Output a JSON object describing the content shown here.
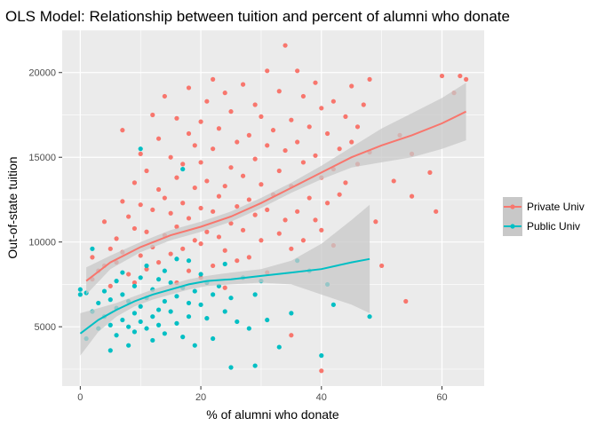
{
  "chart_data": {
    "type": "scatter",
    "title": "OLS Model: Relationship between tuition and percent of alumni who donate",
    "xlabel": "% of alumni who donate",
    "ylabel": "Out-of-state tuition",
    "xlim": [
      -3,
      67
    ],
    "ylim": [
      1500,
      22500
    ],
    "x_ticks": [
      0,
      20,
      40,
      60
    ],
    "y_ticks": [
      5000,
      10000,
      15000,
      20000
    ],
    "x_tick_labels": [
      "0",
      "20",
      "40",
      "60"
    ],
    "y_tick_labels": [
      "5000",
      "10000",
      "15000",
      "20000"
    ],
    "grid": true,
    "legend_position": "right",
    "series": [
      {
        "name": "Private Univ",
        "color": "#F8766D",
        "points": [
          [
            2,
            7800
          ],
          [
            2,
            9100
          ],
          [
            3,
            8300
          ],
          [
            4,
            8600
          ],
          [
            4,
            11200
          ],
          [
            5,
            7400
          ],
          [
            5,
            9600
          ],
          [
            6,
            8800
          ],
          [
            6,
            10200
          ],
          [
            7,
            9400
          ],
          [
            7,
            12400
          ],
          [
            7,
            16600
          ],
          [
            8,
            8100
          ],
          [
            8,
            11500
          ],
          [
            9,
            7600
          ],
          [
            9,
            10800
          ],
          [
            9,
            13500
          ],
          [
            10,
            9200
          ],
          [
            10,
            12200
          ],
          [
            10,
            15200
          ],
          [
            11,
            8400
          ],
          [
            11,
            10600
          ],
          [
            11,
            14200
          ],
          [
            12,
            9700
          ],
          [
            12,
            11900
          ],
          [
            12,
            17500
          ],
          [
            13,
            8800
          ],
          [
            13,
            13100
          ],
          [
            13,
            16100
          ],
          [
            14,
            10400
          ],
          [
            14,
            12600
          ],
          [
            14,
            18600
          ],
          [
            15,
            9300
          ],
          [
            15,
            11700
          ],
          [
            15,
            15000
          ],
          [
            16,
            7600
          ],
          [
            16,
            10900
          ],
          [
            16,
            13800
          ],
          [
            16,
            17300
          ],
          [
            17,
            9600
          ],
          [
            17,
            12300
          ],
          [
            17,
            14600
          ],
          [
            18,
            8300
          ],
          [
            18,
            11400
          ],
          [
            18,
            16400
          ],
          [
            18,
            19100
          ],
          [
            19,
            10100
          ],
          [
            19,
            13200
          ],
          [
            19,
            15700
          ],
          [
            20,
            7900
          ],
          [
            20,
            9900
          ],
          [
            20,
            12000
          ],
          [
            20,
            14700
          ],
          [
            20,
            17100
          ],
          [
            21,
            10600
          ],
          [
            21,
            13600
          ],
          [
            21,
            18300
          ],
          [
            22,
            8600
          ],
          [
            22,
            11800
          ],
          [
            22,
            15500
          ],
          [
            22,
            19600
          ],
          [
            23,
            10300
          ],
          [
            23,
            12700
          ],
          [
            23,
            16700
          ],
          [
            24,
            7300
          ],
          [
            24,
            9500
          ],
          [
            24,
            13300
          ],
          [
            24,
            18800
          ],
          [
            25,
            11100
          ],
          [
            25,
            14400
          ],
          [
            25,
            17700
          ],
          [
            26,
            8900
          ],
          [
            26,
            12100
          ],
          [
            26,
            15900
          ],
          [
            27,
            10700
          ],
          [
            27,
            13900
          ],
          [
            27,
            19300
          ],
          [
            28,
            9100
          ],
          [
            28,
            12500
          ],
          [
            28,
            16300
          ],
          [
            29,
            11600
          ],
          [
            29,
            14900
          ],
          [
            29,
            18100
          ],
          [
            30,
            10100
          ],
          [
            30,
            13400
          ],
          [
            30,
            17400
          ],
          [
            31,
            8200
          ],
          [
            31,
            11900
          ],
          [
            31,
            15700
          ],
          [
            31,
            20100
          ],
          [
            32,
            12800
          ],
          [
            32,
            16600
          ],
          [
            33,
            10500
          ],
          [
            33,
            14200
          ],
          [
            33,
            18900
          ],
          [
            34,
            11300
          ],
          [
            34,
            15400
          ],
          [
            34,
            21600
          ],
          [
            35,
            9600
          ],
          [
            35,
            13300
          ],
          [
            35,
            17200
          ],
          [
            35,
            4500
          ],
          [
            36,
            11800
          ],
          [
            36,
            15900
          ],
          [
            36,
            20100
          ],
          [
            37,
            10100
          ],
          [
            37,
            14700
          ],
          [
            37,
            18600
          ],
          [
            38,
            12600
          ],
          [
            38,
            16800
          ],
          [
            39,
            11300
          ],
          [
            39,
            15100
          ],
          [
            39,
            19400
          ],
          [
            40,
            10700
          ],
          [
            40,
            13800
          ],
          [
            40,
            17900
          ],
          [
            40,
            2400
          ],
          [
            41,
            12300
          ],
          [
            41,
            16400
          ],
          [
            42,
            14300
          ],
          [
            42,
            18300
          ],
          [
            42,
            9800
          ],
          [
            43,
            12800
          ],
          [
            43,
            15500
          ],
          [
            44,
            17400
          ],
          [
            44,
            13500
          ],
          [
            45,
            15900
          ],
          [
            45,
            19200
          ],
          [
            46,
            16800
          ],
          [
            46,
            14600
          ],
          [
            47,
            18100
          ],
          [
            48,
            19600
          ],
          [
            48,
            15300
          ],
          [
            49,
            11200
          ],
          [
            50,
            8600
          ],
          [
            52,
            13600
          ],
          [
            53,
            16300
          ],
          [
            54,
            6500
          ],
          [
            55,
            12700
          ],
          [
            55,
            15200
          ],
          [
            58,
            14100
          ],
          [
            59,
            11800
          ],
          [
            60,
            19800
          ],
          [
            63,
            19800
          ],
          [
            64,
            19600
          ],
          [
            62,
            18800
          ]
        ],
        "fit": [
          [
            1,
            7700
          ],
          [
            5,
            8800
          ],
          [
            10,
            9700
          ],
          [
            15,
            10400
          ],
          [
            20,
            10900
          ],
          [
            25,
            11500
          ],
          [
            30,
            12300
          ],
          [
            35,
            13200
          ],
          [
            40,
            14100
          ],
          [
            45,
            15000
          ],
          [
            50,
            15700
          ],
          [
            55,
            16300
          ],
          [
            60,
            17000
          ],
          [
            64,
            17700
          ]
        ],
        "band_upper": [
          [
            1,
            8500
          ],
          [
            5,
            9200
          ],
          [
            10,
            10000
          ],
          [
            15,
            10700
          ],
          [
            20,
            11200
          ],
          [
            25,
            11800
          ],
          [
            30,
            12600
          ],
          [
            35,
            13500
          ],
          [
            40,
            14500
          ],
          [
            45,
            15600
          ],
          [
            50,
            16700
          ],
          [
            55,
            17600
          ],
          [
            60,
            18500
          ],
          [
            64,
            19400
          ]
        ],
        "band_lower": [
          [
            1,
            6900
          ],
          [
            5,
            8400
          ],
          [
            10,
            9400
          ],
          [
            15,
            10100
          ],
          [
            20,
            10600
          ],
          [
            25,
            11200
          ],
          [
            30,
            12000
          ],
          [
            35,
            12900
          ],
          [
            40,
            13700
          ],
          [
            45,
            14400
          ],
          [
            50,
            14700
          ],
          [
            55,
            15000
          ],
          [
            60,
            15500
          ],
          [
            64,
            16000
          ]
        ]
      },
      {
        "name": "Public Univ",
        "color": "#00BFC4",
        "points": [
          [
            0,
            7200
          ],
          [
            0,
            6900
          ],
          [
            1,
            7000
          ],
          [
            1,
            4300
          ],
          [
            2,
            5900
          ],
          [
            2,
            9600
          ],
          [
            3,
            6400
          ],
          [
            3,
            4900
          ],
          [
            4,
            7100
          ],
          [
            4,
            5600
          ],
          [
            5,
            5100
          ],
          [
            5,
            6600
          ],
          [
            5,
            3600
          ],
          [
            6,
            6100
          ],
          [
            6,
            7700
          ],
          [
            6,
            4500
          ],
          [
            7,
            5400
          ],
          [
            7,
            6900
          ],
          [
            7,
            8200
          ],
          [
            8,
            5000
          ],
          [
            8,
            6500
          ],
          [
            8,
            3900
          ],
          [
            9,
            5800
          ],
          [
            9,
            7400
          ],
          [
            9,
            4700
          ],
          [
            10,
            6200
          ],
          [
            10,
            15500
          ],
          [
            10,
            5300
          ],
          [
            10,
            7900
          ],
          [
            11,
            4900
          ],
          [
            11,
            6700
          ],
          [
            11,
            8600
          ],
          [
            12,
            5600
          ],
          [
            12,
            7200
          ],
          [
            12,
            4200
          ],
          [
            13,
            6000
          ],
          [
            13,
            7800
          ],
          [
            13,
            5100
          ],
          [
            14,
            6500
          ],
          [
            14,
            8300
          ],
          [
            14,
            4600
          ],
          [
            15,
            5900
          ],
          [
            15,
            7600
          ],
          [
            16,
            6800
          ],
          [
            16,
            9000
          ],
          [
            16,
            5200
          ],
          [
            17,
            14300
          ],
          [
            17,
            7300
          ],
          [
            17,
            4400
          ],
          [
            18,
            6400
          ],
          [
            18,
            8900
          ],
          [
            18,
            5600
          ],
          [
            19,
            7100
          ],
          [
            19,
            3900
          ],
          [
            20,
            6300
          ],
          [
            20,
            8100
          ],
          [
            21,
            5500
          ],
          [
            21,
            7600
          ],
          [
            22,
            4300
          ],
          [
            22,
            6900
          ],
          [
            23,
            7400
          ],
          [
            24,
            5900
          ],
          [
            24,
            8700
          ],
          [
            25,
            2600
          ],
          [
            25,
            6700
          ],
          [
            26,
            5300
          ],
          [
            27,
            7900
          ],
          [
            28,
            4900
          ],
          [
            29,
            2700
          ],
          [
            29,
            6900
          ],
          [
            30,
            7700
          ],
          [
            31,
            5400
          ],
          [
            33,
            3800
          ],
          [
            35,
            5800
          ],
          [
            36,
            8900
          ],
          [
            38,
            8300
          ],
          [
            40,
            3300
          ],
          [
            41,
            7500
          ],
          [
            42,
            6300
          ],
          [
            48,
            5600
          ]
        ],
        "fit": [
          [
            0,
            4600
          ],
          [
            3,
            5400
          ],
          [
            6,
            6000
          ],
          [
            9,
            6500
          ],
          [
            12,
            6900
          ],
          [
            15,
            7200
          ],
          [
            18,
            7500
          ],
          [
            21,
            7700
          ],
          [
            25,
            7800
          ],
          [
            30,
            8000
          ],
          [
            35,
            8200
          ],
          [
            40,
            8400
          ],
          [
            45,
            8800
          ],
          [
            48,
            9000
          ]
        ],
        "band_upper": [
          [
            0,
            5800
          ],
          [
            3,
            6100
          ],
          [
            6,
            6400
          ],
          [
            9,
            6800
          ],
          [
            12,
            7200
          ],
          [
            15,
            7500
          ],
          [
            18,
            7800
          ],
          [
            21,
            8000
          ],
          [
            25,
            8200
          ],
          [
            30,
            8400
          ],
          [
            35,
            8900
          ],
          [
            40,
            9900
          ],
          [
            45,
            11300
          ],
          [
            48,
            12200
          ]
        ],
        "band_lower": [
          [
            0,
            3300
          ],
          [
            3,
            4700
          ],
          [
            6,
            5600
          ],
          [
            9,
            6200
          ],
          [
            12,
            6600
          ],
          [
            15,
            6900
          ],
          [
            18,
            7200
          ],
          [
            21,
            7400
          ],
          [
            25,
            7500
          ],
          [
            30,
            7600
          ],
          [
            35,
            7500
          ],
          [
            40,
            6900
          ],
          [
            45,
            6300
          ],
          [
            48,
            5800
          ]
        ]
      }
    ]
  },
  "colors": {
    "panel_background": "#EBEBEB",
    "grid_major": "#FFFFFF",
    "confidence_band": "#C8C8C8",
    "axis_text": "#4D4D4D"
  }
}
